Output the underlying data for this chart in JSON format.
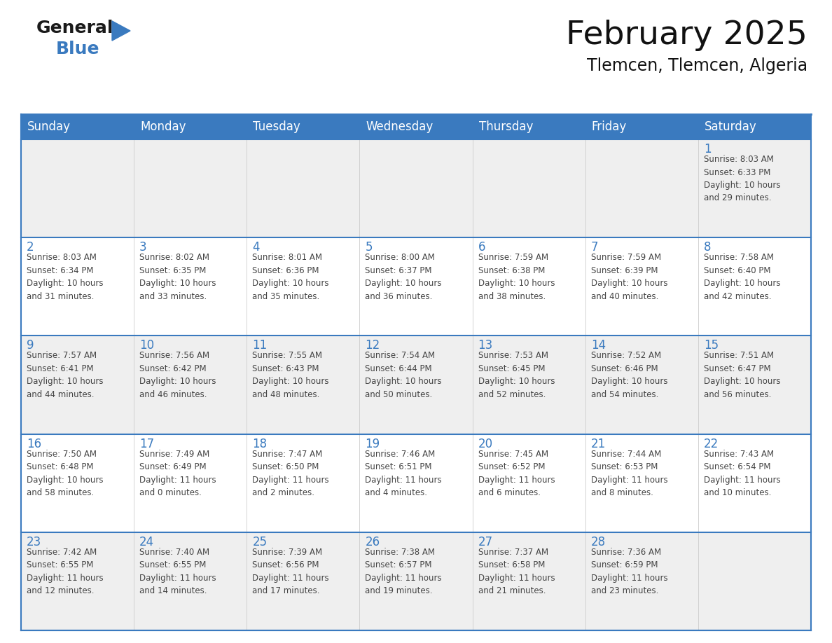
{
  "title": "February 2025",
  "subtitle": "Tlemcen, Tlemcen, Algeria",
  "header_color": "#3a7abf",
  "header_text_color": "#ffffff",
  "cell_bg_odd": "#efefef",
  "cell_bg_even": "#ffffff",
  "day_number_color": "#3a7abf",
  "info_text_color": "#444444",
  "border_color": "#3a7abf",
  "weekdays": [
    "Sunday",
    "Monday",
    "Tuesday",
    "Wednesday",
    "Thursday",
    "Friday",
    "Saturday"
  ],
  "weeks": [
    [
      {
        "day": null,
        "info": null
      },
      {
        "day": null,
        "info": null
      },
      {
        "day": null,
        "info": null
      },
      {
        "day": null,
        "info": null
      },
      {
        "day": null,
        "info": null
      },
      {
        "day": null,
        "info": null
      },
      {
        "day": 1,
        "info": "Sunrise: 8:03 AM\nSunset: 6:33 PM\nDaylight: 10 hours\nand 29 minutes."
      }
    ],
    [
      {
        "day": 2,
        "info": "Sunrise: 8:03 AM\nSunset: 6:34 PM\nDaylight: 10 hours\nand 31 minutes."
      },
      {
        "day": 3,
        "info": "Sunrise: 8:02 AM\nSunset: 6:35 PM\nDaylight: 10 hours\nand 33 minutes."
      },
      {
        "day": 4,
        "info": "Sunrise: 8:01 AM\nSunset: 6:36 PM\nDaylight: 10 hours\nand 35 minutes."
      },
      {
        "day": 5,
        "info": "Sunrise: 8:00 AM\nSunset: 6:37 PM\nDaylight: 10 hours\nand 36 minutes."
      },
      {
        "day": 6,
        "info": "Sunrise: 7:59 AM\nSunset: 6:38 PM\nDaylight: 10 hours\nand 38 minutes."
      },
      {
        "day": 7,
        "info": "Sunrise: 7:59 AM\nSunset: 6:39 PM\nDaylight: 10 hours\nand 40 minutes."
      },
      {
        "day": 8,
        "info": "Sunrise: 7:58 AM\nSunset: 6:40 PM\nDaylight: 10 hours\nand 42 minutes."
      }
    ],
    [
      {
        "day": 9,
        "info": "Sunrise: 7:57 AM\nSunset: 6:41 PM\nDaylight: 10 hours\nand 44 minutes."
      },
      {
        "day": 10,
        "info": "Sunrise: 7:56 AM\nSunset: 6:42 PM\nDaylight: 10 hours\nand 46 minutes."
      },
      {
        "day": 11,
        "info": "Sunrise: 7:55 AM\nSunset: 6:43 PM\nDaylight: 10 hours\nand 48 minutes."
      },
      {
        "day": 12,
        "info": "Sunrise: 7:54 AM\nSunset: 6:44 PM\nDaylight: 10 hours\nand 50 minutes."
      },
      {
        "day": 13,
        "info": "Sunrise: 7:53 AM\nSunset: 6:45 PM\nDaylight: 10 hours\nand 52 minutes."
      },
      {
        "day": 14,
        "info": "Sunrise: 7:52 AM\nSunset: 6:46 PM\nDaylight: 10 hours\nand 54 minutes."
      },
      {
        "day": 15,
        "info": "Sunrise: 7:51 AM\nSunset: 6:47 PM\nDaylight: 10 hours\nand 56 minutes."
      }
    ],
    [
      {
        "day": 16,
        "info": "Sunrise: 7:50 AM\nSunset: 6:48 PM\nDaylight: 10 hours\nand 58 minutes."
      },
      {
        "day": 17,
        "info": "Sunrise: 7:49 AM\nSunset: 6:49 PM\nDaylight: 11 hours\nand 0 minutes."
      },
      {
        "day": 18,
        "info": "Sunrise: 7:47 AM\nSunset: 6:50 PM\nDaylight: 11 hours\nand 2 minutes."
      },
      {
        "day": 19,
        "info": "Sunrise: 7:46 AM\nSunset: 6:51 PM\nDaylight: 11 hours\nand 4 minutes."
      },
      {
        "day": 20,
        "info": "Sunrise: 7:45 AM\nSunset: 6:52 PM\nDaylight: 11 hours\nand 6 minutes."
      },
      {
        "day": 21,
        "info": "Sunrise: 7:44 AM\nSunset: 6:53 PM\nDaylight: 11 hours\nand 8 minutes."
      },
      {
        "day": 22,
        "info": "Sunrise: 7:43 AM\nSunset: 6:54 PM\nDaylight: 11 hours\nand 10 minutes."
      }
    ],
    [
      {
        "day": 23,
        "info": "Sunrise: 7:42 AM\nSunset: 6:55 PM\nDaylight: 11 hours\nand 12 minutes."
      },
      {
        "day": 24,
        "info": "Sunrise: 7:40 AM\nSunset: 6:55 PM\nDaylight: 11 hours\nand 14 minutes."
      },
      {
        "day": 25,
        "info": "Sunrise: 7:39 AM\nSunset: 6:56 PM\nDaylight: 11 hours\nand 17 minutes."
      },
      {
        "day": 26,
        "info": "Sunrise: 7:38 AM\nSunset: 6:57 PM\nDaylight: 11 hours\nand 19 minutes."
      },
      {
        "day": 27,
        "info": "Sunrise: 7:37 AM\nSunset: 6:58 PM\nDaylight: 11 hours\nand 21 minutes."
      },
      {
        "day": 28,
        "info": "Sunrise: 7:36 AM\nSunset: 6:59 PM\nDaylight: 11 hours\nand 23 minutes."
      },
      {
        "day": null,
        "info": null
      }
    ]
  ]
}
